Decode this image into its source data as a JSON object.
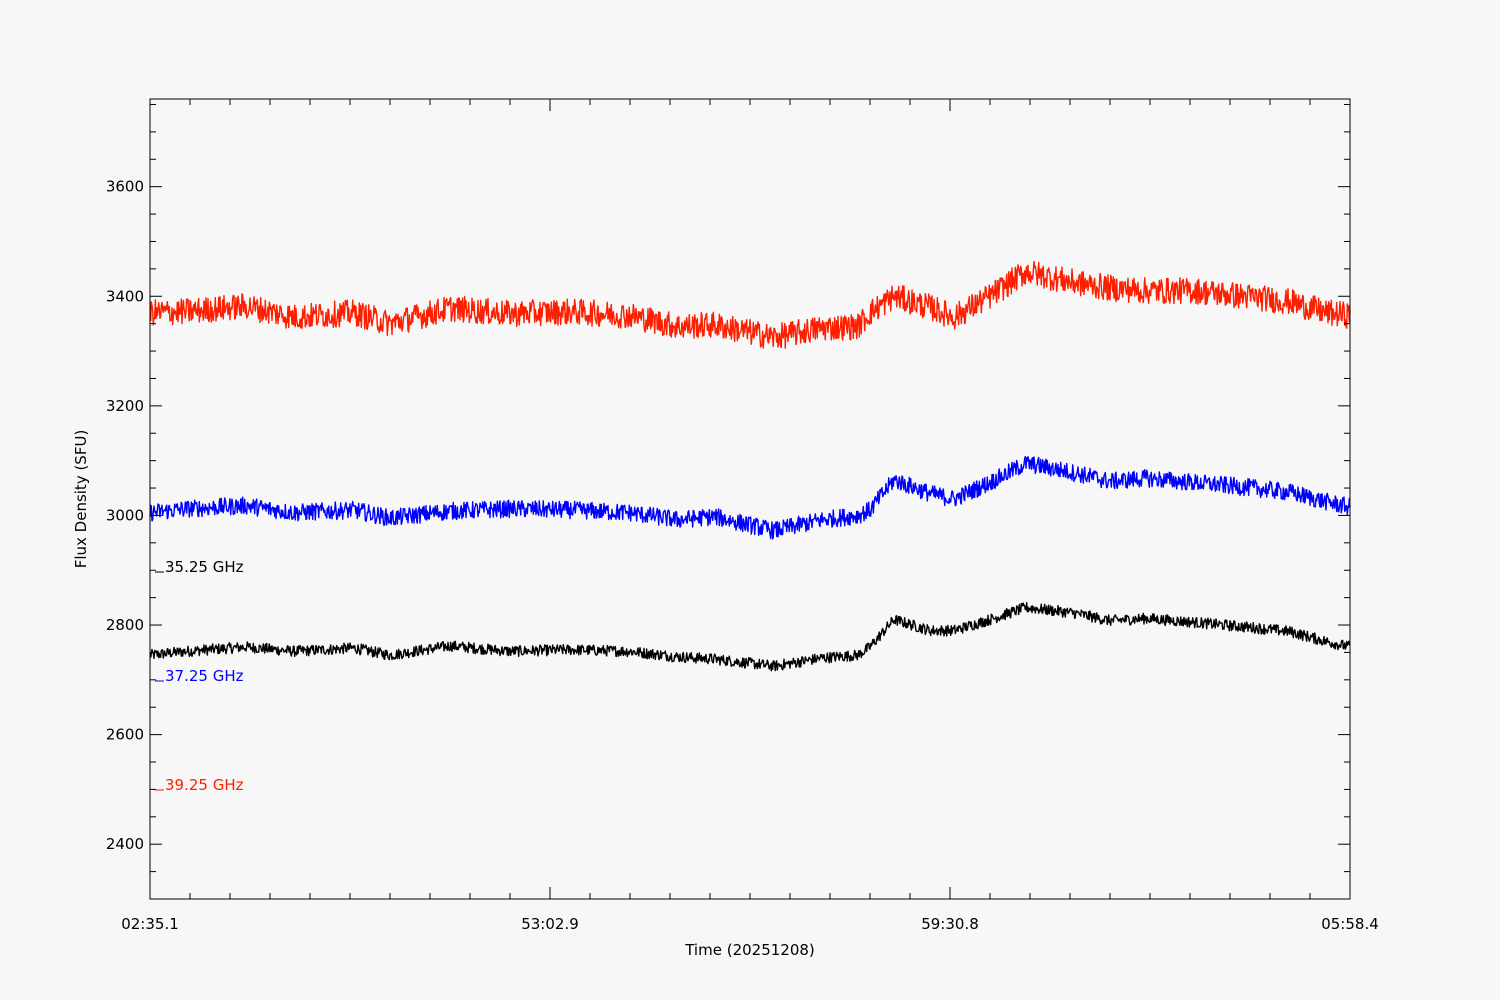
{
  "chart_data": {
    "type": "line",
    "xlabel": "Time (20251208)",
    "ylabel": "Flux Density (SFU)",
    "ylim": [
      2300,
      3760
    ],
    "y_ticks": [
      2400,
      2600,
      2800,
      3000,
      3200,
      3400,
      3600
    ],
    "x_tick_labels": [
      "02:35.1",
      "53:02.9",
      "59:30.8",
      "05:58.4"
    ],
    "x_domain": [
      0,
      1
    ],
    "grid": false,
    "series": [
      {
        "name": "35.25 GHz",
        "color": "#000000",
        "noise": 10,
        "x": [
          0,
          0.03,
          0.08,
          0.12,
          0.17,
          0.2,
          0.25,
          0.3,
          0.35,
          0.4,
          0.44,
          0.47,
          0.52,
          0.56,
          0.59,
          0.6,
          0.62,
          0.65,
          0.67,
          0.7,
          0.73,
          0.77,
          0.8,
          0.83,
          0.87,
          0.92,
          0.95,
          0.98,
          1.0
        ],
        "y": [
          2745,
          2752,
          2760,
          2752,
          2758,
          2745,
          2762,
          2752,
          2755,
          2752,
          2742,
          2738,
          2725,
          2740,
          2745,
          2760,
          2810,
          2790,
          2790,
          2810,
          2832,
          2822,
          2808,
          2812,
          2805,
          2795,
          2788,
          2770,
          2760
        ]
      },
      {
        "name": "37.25 GHz",
        "color": "#0000ff",
        "noise": 16,
        "x": [
          0,
          0.03,
          0.08,
          0.12,
          0.17,
          0.2,
          0.25,
          0.3,
          0.35,
          0.4,
          0.44,
          0.47,
          0.52,
          0.56,
          0.59,
          0.6,
          0.62,
          0.65,
          0.67,
          0.7,
          0.73,
          0.77,
          0.8,
          0.83,
          0.87,
          0.92,
          0.95,
          0.98,
          1.0
        ],
        "y": [
          3005,
          3012,
          3018,
          3005,
          3010,
          2995,
          3008,
          3012,
          3010,
          3005,
          2992,
          2998,
          2972,
          2992,
          3000,
          3010,
          3065,
          3040,
          3030,
          3060,
          3095,
          3078,
          3062,
          3068,
          3060,
          3050,
          3042,
          3025,
          3015
        ]
      },
      {
        "name": "39.25 GHz",
        "color": "#ff1e00",
        "noise": 24,
        "x": [
          0,
          0.03,
          0.08,
          0.12,
          0.17,
          0.2,
          0.25,
          0.3,
          0.35,
          0.4,
          0.44,
          0.47,
          0.52,
          0.56,
          0.59,
          0.6,
          0.62,
          0.65,
          0.67,
          0.7,
          0.73,
          0.77,
          0.8,
          0.83,
          0.87,
          0.92,
          0.95,
          0.98,
          1.0
        ],
        "y": [
          3370,
          3372,
          3382,
          3362,
          3370,
          3350,
          3378,
          3368,
          3372,
          3365,
          3345,
          3348,
          3325,
          3342,
          3345,
          3370,
          3400,
          3380,
          3362,
          3400,
          3445,
          3425,
          3415,
          3410,
          3410,
          3398,
          3390,
          3370,
          3365
        ]
      }
    ]
  }
}
